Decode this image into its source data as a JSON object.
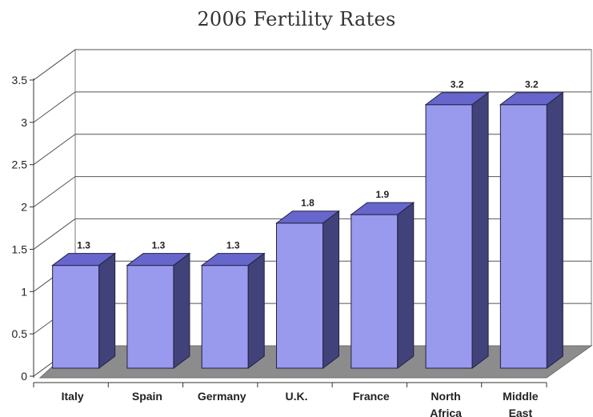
{
  "chart_data": {
    "type": "bar",
    "title": "2006 Fertility Rates",
    "xlabel": "",
    "ylabel": "",
    "categories": [
      "Italy",
      "Spain",
      "Germany",
      "U.K.",
      "France",
      "North Africa",
      "Middle East"
    ],
    "category_lines": [
      [
        "Italy"
      ],
      [
        "Spain"
      ],
      [
        "Germany"
      ],
      [
        "U.K."
      ],
      [
        "France"
      ],
      [
        "North",
        "Africa"
      ],
      [
        "Middle",
        "East"
      ]
    ],
    "values": [
      1.3,
      1.3,
      1.3,
      1.8,
      1.9,
      3.2,
      3.2
    ],
    "data_labels": [
      "1.3",
      "1.3",
      "1.3",
      "1.8",
      "1.9",
      "3.2",
      "3.2"
    ],
    "y_ticks": [
      0,
      0.5,
      1,
      1.5,
      2,
      2.5,
      3,
      3.5
    ],
    "y_tick_labels": [
      "0",
      "0.5",
      "1",
      "1.5",
      "2",
      "2.5",
      "3",
      "3.5"
    ],
    "ylim": [
      0,
      3.5
    ],
    "grid": true,
    "legend": "none",
    "style": "3d",
    "colors": {
      "bar_front": "#9999ee",
      "bar_top": "#6666cc",
      "bar_side": "#42427a",
      "floor": "#8c8c8c",
      "gridline": "#555555"
    }
  }
}
